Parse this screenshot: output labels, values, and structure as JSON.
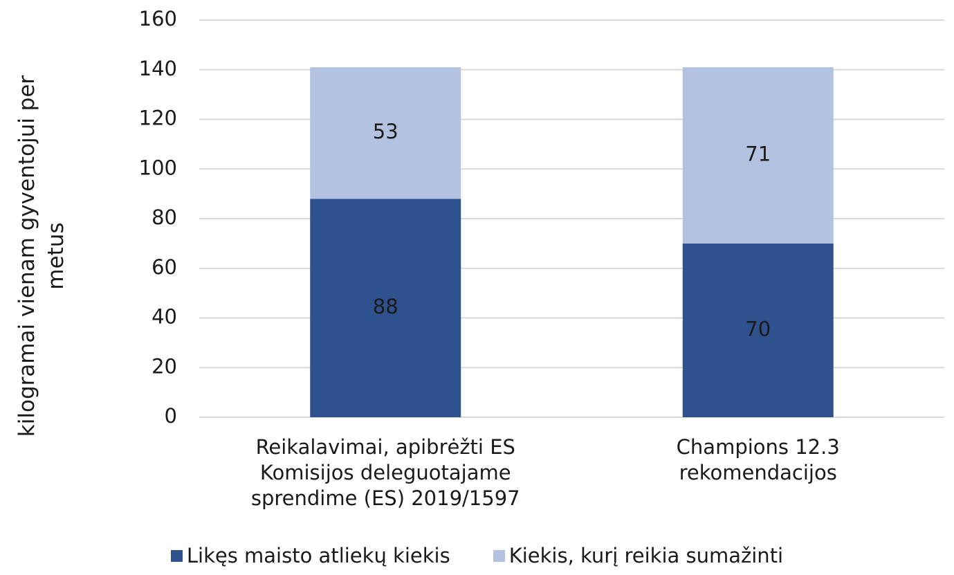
{
  "chart_data": {
    "type": "stacked_bar",
    "y_label": "kilogramai vienam gyventojui per metus",
    "categories": [
      "Reikalavimai, apibrėžti ES Komisijos deleguotajame sprendime (ES) 2019/1597",
      "Champions 12.3 rekomendacijos"
    ],
    "series": [
      {
        "name": "Likęs maisto atliekų kiekis",
        "color": "#2f528f",
        "values": [
          88,
          70
        ]
      },
      {
        "name": "Kiekis, kurį reikia sumažinti",
        "color": "#b4c2e2",
        "values": [
          53,
          71
        ]
      }
    ],
    "ylim": [
      0,
      160
    ],
    "yticks": [
      0,
      20,
      40,
      60,
      80,
      100,
      120,
      140,
      160
    ],
    "grid": true,
    "legend": "bottom"
  }
}
